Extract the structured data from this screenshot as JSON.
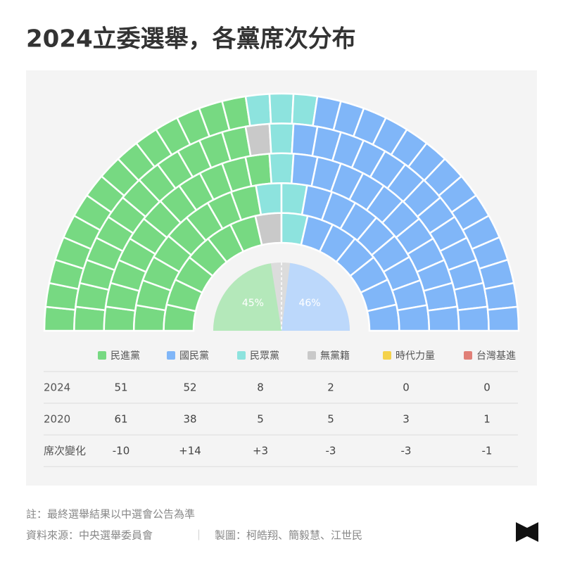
{
  "chart_data": {
    "type": "parliament",
    "title": "2024立委選舉，各黨席次分布",
    "years": [
      "2024",
      "2020"
    ],
    "series": [
      {
        "name": "民進黨",
        "color": "#77d982",
        "values": [
          51,
          61
        ]
      },
      {
        "name": "國民黨",
        "color": "#80b6f8",
        "values": [
          52,
          38
        ]
      },
      {
        "name": "民眾黨",
        "color": "#8de3de",
        "values": [
          8,
          5
        ]
      },
      {
        "name": "無黨籍",
        "color": "#c9c9c9",
        "values": [
          2,
          5
        ]
      },
      {
        "name": "時代力量",
        "color": "#f4d24c",
        "values": [
          0,
          3
        ]
      },
      {
        "name": "台灣基進",
        "color": "#e07f77",
        "values": [
          0,
          1
        ]
      }
    ],
    "change": {
      "name": "席次變化",
      "values": [
        -10,
        14,
        3,
        -3,
        -3,
        -1
      ],
      "value_labels": [
        "-10",
        "+14",
        "+3",
        "-3",
        "-3",
        "-1"
      ]
    },
    "pie": {
      "values": [
        45,
        46
      ],
      "value_labels": [
        "45%",
        "46%"
      ],
      "colors": [
        "#b4e8ba",
        "#bcd8fb"
      ]
    }
  },
  "notes": [
    "註：最終選舉結果以中選會公告為準",
    "資料來源：中央選舉委員會",
    "製圖：柯皓翔、簡毅慧、江世民"
  ]
}
